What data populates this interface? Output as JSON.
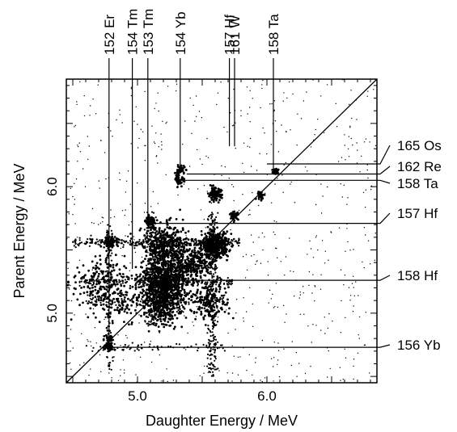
{
  "chart_data": {
    "type": "scatter",
    "title": "",
    "xlabel": "Daughter Energy / MeV",
    "ylabel": "Parent Energy / MeV",
    "xlim": [
      4.45,
      6.85
    ],
    "ylim": [
      4.45,
      6.85
    ],
    "x_ticks": [
      {
        "value": 5.0,
        "label": "5.0"
      },
      {
        "value": 6.0,
        "label": "6.0"
      }
    ],
    "y_ticks": [
      {
        "value": 5.0,
        "label": "5.0"
      },
      {
        "value": 6.0,
        "label": "6.0"
      }
    ],
    "diagonal": true,
    "vertical_annotations": [
      {
        "label": "152 Er",
        "x": 4.78,
        "y_from": 4.72
      },
      {
        "label": "154 Tm",
        "x": 4.96,
        "y_from": 5.35
      },
      {
        "label": "153 Tm",
        "x": 5.08,
        "y_from": 5.72
      },
      {
        "label": "154 Yb",
        "x": 5.33,
        "y_from": 6.12
      },
      {
        "label": "157 Hf",
        "x": 5.71,
        "y_from": 6.32
      },
      {
        "label": "161 W",
        "x": 5.75,
        "y_from": 6.32
      },
      {
        "label": "158 Ta",
        "x": 6.05,
        "y_from": 6.14
      }
    ],
    "horizontal_annotations": [
      {
        "label": "165 Os",
        "y": 6.18,
        "x_from": 6.0
      },
      {
        "label": "162 Re",
        "y": 6.1,
        "x_from": 5.38
      },
      {
        "label": "158 Ta",
        "y": 6.05,
        "x_from": 5.32
      },
      {
        "label": "157 Hf",
        "y": 5.71,
        "x_from": 5.1
      },
      {
        "label": "158 Hf",
        "y": 5.26,
        "x_from": 5.0
      },
      {
        "label": "156 Yb",
        "y": 4.73,
        "x_from": 4.8
      }
    ],
    "clusters": [
      {
        "x": 4.78,
        "y": 5.56,
        "n": 90,
        "s": 0.025
      },
      {
        "x": 5.33,
        "y": 6.13,
        "n": 50,
        "s": 0.018
      },
      {
        "x": 5.33,
        "y": 6.05,
        "n": 40,
        "s": 0.018
      },
      {
        "x": 5.1,
        "y": 5.72,
        "n": 70,
        "s": 0.018
      },
      {
        "x": 5.6,
        "y": 5.94,
        "n": 120,
        "s": 0.025
      },
      {
        "x": 5.75,
        "y": 5.77,
        "n": 45,
        "s": 0.015
      },
      {
        "x": 5.95,
        "y": 5.93,
        "n": 30,
        "s": 0.015
      },
      {
        "x": 6.07,
        "y": 6.12,
        "n": 35,
        "s": 0.015
      },
      {
        "x": 5.6,
        "y": 5.54,
        "n": 420,
        "s": 0.05
      },
      {
        "x": 5.22,
        "y": 5.52,
        "n": 450,
        "s": 0.09
      },
      {
        "x": 5.2,
        "y": 5.25,
        "n": 700,
        "s": 0.09
      },
      {
        "x": 5.18,
        "y": 5.05,
        "n": 300,
        "s": 0.07
      },
      {
        "x": 5.45,
        "y": 5.4,
        "n": 200,
        "s": 0.06
      },
      {
        "x": 5.55,
        "y": 5.1,
        "n": 180,
        "s": 0.08
      },
      {
        "x": 4.78,
        "y": 4.73,
        "n": 60,
        "s": 0.015
      },
      {
        "x": 4.78,
        "y": 4.8,
        "n": 30,
        "s": 0.02
      },
      {
        "x": 4.7,
        "y": 5.25,
        "n": 160,
        "s": 0.1
      },
      {
        "x": 4.82,
        "y": 5.1,
        "n": 120,
        "s": 0.1
      }
    ],
    "bands": [
      {
        "orient": "h",
        "y": 5.56,
        "x0": 4.5,
        "x1": 5.8,
        "n": 260,
        "s": 0.018
      },
      {
        "orient": "h",
        "y": 5.25,
        "x0": 4.55,
        "x1": 5.75,
        "n": 200,
        "s": 0.02
      },
      {
        "orient": "h",
        "y": 5.1,
        "x0": 4.6,
        "x1": 5.7,
        "n": 120,
        "s": 0.02
      },
      {
        "orient": "h",
        "y": 4.73,
        "x0": 4.6,
        "x1": 5.7,
        "n": 70,
        "s": 0.015
      },
      {
        "orient": "v",
        "x": 5.58,
        "y0": 4.5,
        "y1": 5.8,
        "n": 260,
        "s": 0.018
      },
      {
        "orient": "v",
        "x": 5.1,
        "y0": 4.9,
        "y1": 5.8,
        "n": 140,
        "s": 0.02
      },
      {
        "orient": "v",
        "x": 4.78,
        "y0": 4.55,
        "y1": 5.7,
        "n": 100,
        "s": 0.015
      },
      {
        "orient": "v",
        "x": 5.33,
        "y0": 5.0,
        "y1": 5.6,
        "n": 80,
        "s": 0.02
      }
    ],
    "background_points": 650
  }
}
